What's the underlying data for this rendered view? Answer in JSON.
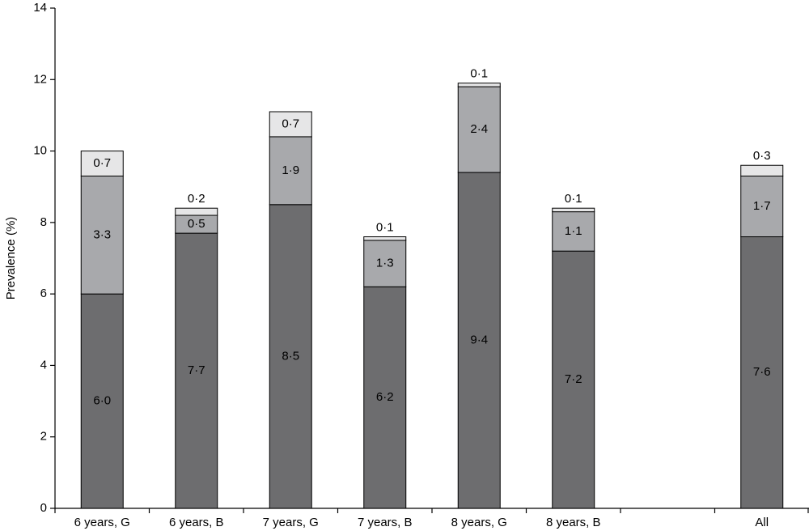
{
  "chart_data": {
    "type": "stacked_bar",
    "y_label": "Prevalence (%)",
    "categories": [
      "6 years, G",
      "6 years, B",
      "7 years, G",
      "7 years, B",
      "8 years, G",
      "8 years, B",
      null,
      "All"
    ],
    "series": [
      {
        "color": "#6d6d6f",
        "values": [
          6.0,
          7.7,
          8.5,
          6.2,
          9.4,
          7.2,
          null,
          7.6
        ],
        "value_labels": [
          "6·0",
          "7·7",
          "8·5",
          "6·2",
          "9·4",
          "7·2",
          null,
          "7·6"
        ]
      },
      {
        "color": "#a8a9ac",
        "values": [
          3.3,
          0.5,
          1.9,
          1.3,
          2.4,
          1.1,
          null,
          1.7
        ],
        "value_labels": [
          "3·3",
          "0·5",
          "1·9",
          "1·3",
          "2·4",
          "1·1",
          null,
          "1·7"
        ]
      },
      {
        "color": "#e6e6e7",
        "values": [
          0.7,
          0.2,
          0.7,
          0.1,
          0.1,
          0.1,
          null,
          0.3
        ],
        "value_labels": [
          "0·7",
          "0·2",
          "0·7",
          "0·1",
          "0·1",
          "0·1",
          null,
          "0·3"
        ]
      }
    ],
    "ylim": [
      0,
      14
    ],
    "yticks": [
      0,
      2,
      4,
      6,
      8,
      10,
      12,
      14
    ]
  }
}
